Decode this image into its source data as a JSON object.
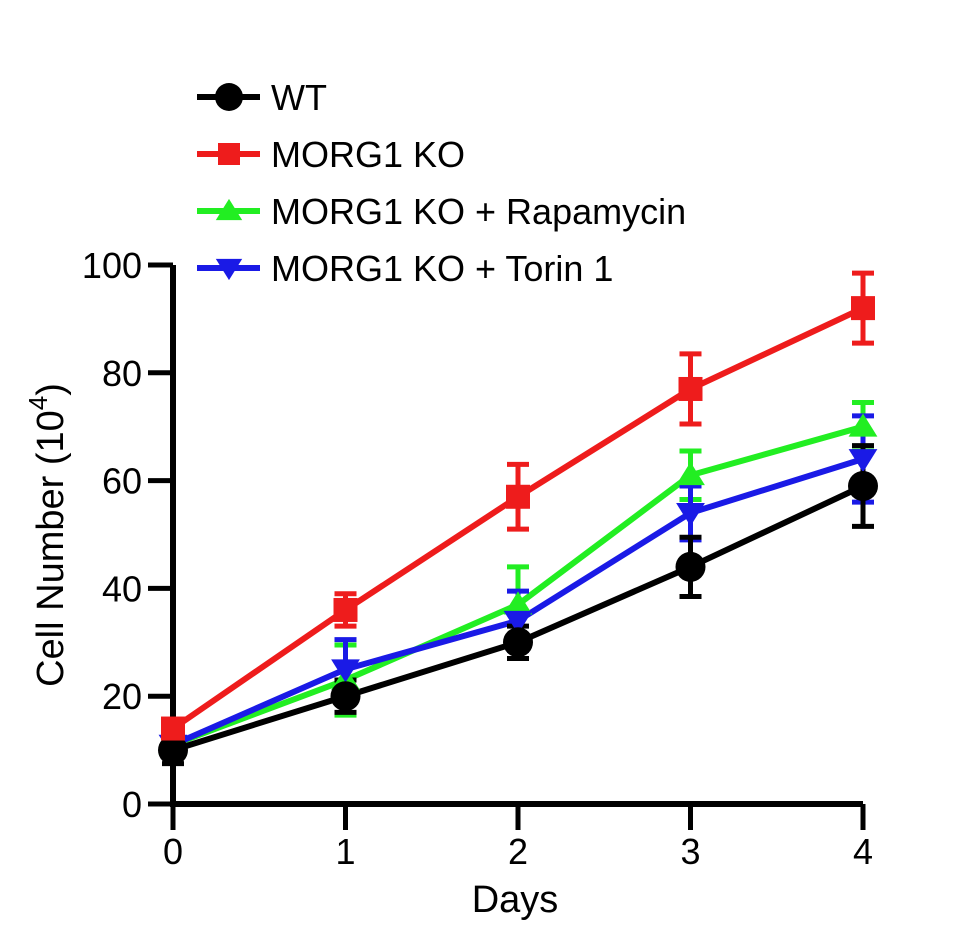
{
  "chart_data": {
    "type": "line",
    "xlabel": "Days",
    "ylabel": "Cell Number (10",
    "ylabel_superscript": "4",
    "ylabel_close": ")",
    "xlim": [
      0,
      4
    ],
    "ylim": [
      0,
      100
    ],
    "xticks": [
      "0",
      "1",
      "2",
      "3",
      "4"
    ],
    "yticks": [
      "0",
      "20",
      "40",
      "60",
      "80",
      "100"
    ],
    "x": [
      0,
      1,
      2,
      3,
      4
    ],
    "grid": false,
    "legend_position": "top-left",
    "series": [
      {
        "name": "WT",
        "color": "#000000",
        "marker": "circle",
        "values": [
          10,
          20,
          30,
          44,
          59
        ],
        "errors": [
          2.5,
          3,
          3,
          5.5,
          7.5
        ]
      },
      {
        "name": "MORG1 KO",
        "color": "#ee1c1c",
        "marker": "square",
        "values": [
          14,
          36,
          57,
          77,
          92
        ],
        "errors": [
          1.5,
          3,
          6,
          6.5,
          6.5
        ]
      },
      {
        "name": "MORG1 KO + Rapamycin",
        "color": "#22ee22",
        "marker": "triangle-up",
        "values": [
          11,
          23,
          37,
          61,
          70
        ],
        "errors": [
          1.5,
          6.5,
          7,
          4.5,
          4.5
        ]
      },
      {
        "name": "MORG1 KO + Torin 1",
        "color": "#1a1ae6",
        "marker": "triangle-down",
        "values": [
          11,
          25,
          34,
          54,
          64
        ],
        "errors": [
          1.5,
          5.5,
          5.5,
          5,
          8
        ]
      }
    ]
  }
}
